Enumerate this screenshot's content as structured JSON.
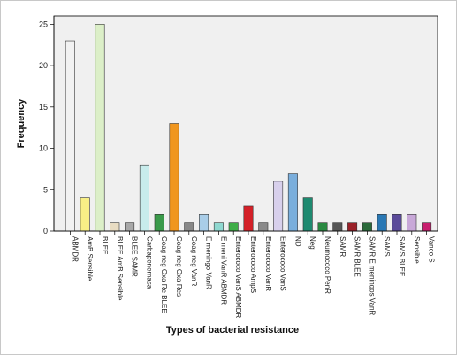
{
  "chart_data": {
    "type": "bar",
    "xlabel": "Types of bacterial resistance",
    "ylabel": "Frequency",
    "ylim": [
      0,
      26
    ],
    "yticks": [
      0,
      5,
      10,
      15,
      20,
      25
    ],
    "grid": false,
    "categories": [
      "ABMDR",
      "AmB Sensible",
      "BLEE",
      "BLEE AmB Sensible",
      "BLEE SAMR",
      "Carbapenemasa",
      "Coag neg Oxa Re BLEE",
      "Coag neg Oxa Res",
      "Coag neg VanR",
      "E meningo VanR",
      "E meni VanR ABMDR",
      "Enterococo VanS ABMDR",
      "Enterococo AmpS",
      "Enterococo VanR",
      "Enterococo VanS",
      "ND",
      "Neg",
      "Neumococo PenR",
      "SAMR",
      "SAMR BLEE",
      "SAMR E meningos VanR",
      "SAMS",
      "SAMS BLEE",
      "Sensible",
      "Vanco S"
    ],
    "values": [
      23,
      4,
      25,
      1,
      1,
      8,
      2,
      13,
      1,
      2,
      1,
      1,
      3,
      1,
      6,
      7,
      4,
      1,
      1,
      1,
      1,
      2,
      2,
      2,
      1
    ],
    "colors": [
      "#f2f2f2",
      "#f8ef86",
      "#dcefc8",
      "#e8dcc2",
      "#a8a8a8",
      "#c8ecec",
      "#3a9a4a",
      "#f0961e",
      "#888888",
      "#a9cde8",
      "#8fd8d0",
      "#3fae48",
      "#d42028",
      "#8a8a8a",
      "#d8d0ec",
      "#7aaedc",
      "#1e8a70",
      "#2a8a42",
      "#555555",
      "#9a2028",
      "#2a6a3a",
      "#2a78b4",
      "#5a4a9a",
      "#c8a8d8",
      "#c81e6e"
    ]
  }
}
